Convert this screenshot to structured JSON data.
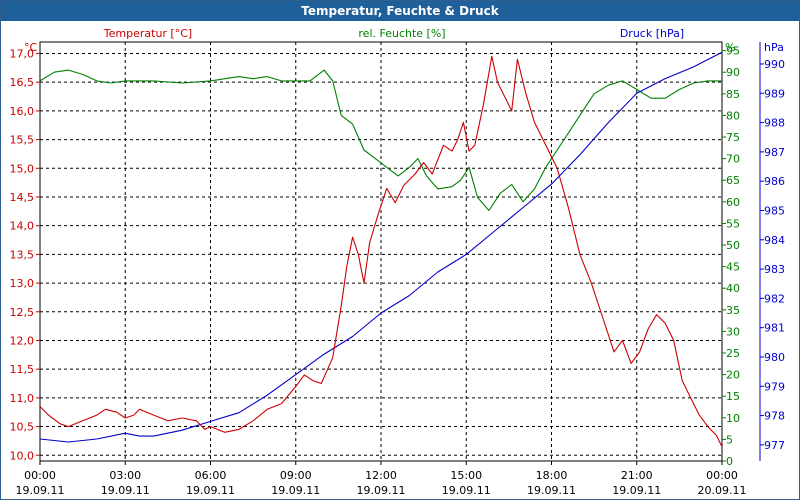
{
  "title": "Temperatur, Feuchte & Druck",
  "colors": {
    "temperature": "#cc0000",
    "humidity": "#008000",
    "pressure": "#0000cc",
    "grid": "#000000",
    "titlebar": "#1f5f9a"
  },
  "chart_data": {
    "type": "line",
    "title": "Temperatur, Feuchte & Druck",
    "x_ticks": [
      {
        "time": "00:00",
        "date": "19.09.11"
      },
      {
        "time": "03:00",
        "date": "19.09.11"
      },
      {
        "time": "06:00",
        "date": "19.09.11"
      },
      {
        "time": "09:00",
        "date": "19.09.11"
      },
      {
        "time": "12:00",
        "date": "19.09.11"
      },
      {
        "time": "15:00",
        "date": "19.09.11"
      },
      {
        "time": "18:00",
        "date": "19.09.11"
      },
      {
        "time": "21:00",
        "date": "19.09.11"
      },
      {
        "time": "00:00",
        "date": "20.09.11"
      }
    ],
    "x_range_hours": [
      0,
      24
    ],
    "axes": {
      "temperature": {
        "label": "Temperatur [°C]",
        "unit": "°C",
        "ylim": [
          9.9,
          17.2
        ],
        "ticks": [
          "10,0",
          "10,5",
          "11,0",
          "11,5",
          "12,0",
          "12,5",
          "13,0",
          "13,5",
          "14,0",
          "14,5",
          "15,0",
          "15,5",
          "16,0",
          "16,5",
          "17,0"
        ]
      },
      "humidity": {
        "label": "rel. Feuchte [%]",
        "unit": "%",
        "ylim": [
          0,
          97
        ],
        "ticks": [
          "0",
          "5",
          "10",
          "15",
          "20",
          "25",
          "30",
          "35",
          "40",
          "45",
          "50",
          "55",
          "60",
          "65",
          "70",
          "75",
          "80",
          "85",
          "90",
          "95"
        ]
      },
      "pressure": {
        "label": "Druck [hPa]",
        "unit": "hPa",
        "ylim": [
          976.45,
          990.75
        ],
        "ticks": [
          "977",
          "978",
          "979",
          "980",
          "981",
          "982",
          "983",
          "984",
          "985",
          "986",
          "987",
          "988",
          "989",
          "990"
        ]
      }
    },
    "series": [
      {
        "name": "Temperatur [°C]",
        "axis": "temperature",
        "points": [
          [
            0,
            10.85
          ],
          [
            0.3,
            10.7
          ],
          [
            0.7,
            10.55
          ],
          [
            1.0,
            10.5
          ],
          [
            1.5,
            10.6
          ],
          [
            2.0,
            10.7
          ],
          [
            2.3,
            10.8
          ],
          [
            2.7,
            10.75
          ],
          [
            3.0,
            10.65
          ],
          [
            3.3,
            10.7
          ],
          [
            3.5,
            10.8
          ],
          [
            4.0,
            10.7
          ],
          [
            4.5,
            10.6
          ],
          [
            5.0,
            10.65
          ],
          [
            5.5,
            10.6
          ],
          [
            5.8,
            10.45
          ],
          [
            6.0,
            10.5
          ],
          [
            6.5,
            10.4
          ],
          [
            7.0,
            10.45
          ],
          [
            7.5,
            10.6
          ],
          [
            8.0,
            10.8
          ],
          [
            8.5,
            10.9
          ],
          [
            9.0,
            11.2
          ],
          [
            9.3,
            11.4
          ],
          [
            9.6,
            11.3
          ],
          [
            9.9,
            11.25
          ],
          [
            10.3,
            11.7
          ],
          [
            10.6,
            12.6
          ],
          [
            10.8,
            13.3
          ],
          [
            11.0,
            13.8
          ],
          [
            11.2,
            13.5
          ],
          [
            11.4,
            13.0
          ],
          [
            11.6,
            13.7
          ],
          [
            11.9,
            14.2
          ],
          [
            12.2,
            14.65
          ],
          [
            12.5,
            14.4
          ],
          [
            12.8,
            14.7
          ],
          [
            13.2,
            14.9
          ],
          [
            13.5,
            15.1
          ],
          [
            13.8,
            14.9
          ],
          [
            14.2,
            15.4
          ],
          [
            14.5,
            15.3
          ],
          [
            14.7,
            15.5
          ],
          [
            14.9,
            15.8
          ],
          [
            15.1,
            15.3
          ],
          [
            15.3,
            15.4
          ],
          [
            15.6,
            16.1
          ],
          [
            15.9,
            16.95
          ],
          [
            16.1,
            16.5
          ],
          [
            16.4,
            16.2
          ],
          [
            16.6,
            16.0
          ],
          [
            16.8,
            16.9
          ],
          [
            17.1,
            16.3
          ],
          [
            17.4,
            15.8
          ],
          [
            17.8,
            15.4
          ],
          [
            18.2,
            15.0
          ],
          [
            18.6,
            14.3
          ],
          [
            19.0,
            13.5
          ],
          [
            19.4,
            13.0
          ],
          [
            19.8,
            12.4
          ],
          [
            20.2,
            11.8
          ],
          [
            20.5,
            12.0
          ],
          [
            20.8,
            11.6
          ],
          [
            21.1,
            11.8
          ],
          [
            21.4,
            12.2
          ],
          [
            21.7,
            12.45
          ],
          [
            22.0,
            12.3
          ],
          [
            22.3,
            12.0
          ],
          [
            22.6,
            11.3
          ],
          [
            22.9,
            11.0
          ],
          [
            23.2,
            10.7
          ],
          [
            23.5,
            10.5
          ],
          [
            23.8,
            10.35
          ],
          [
            24.0,
            10.15
          ]
        ]
      },
      {
        "name": "rel. Feuchte [%]",
        "axis": "humidity",
        "points": [
          [
            0,
            88
          ],
          [
            0.5,
            90
          ],
          [
            1.0,
            90.5
          ],
          [
            1.5,
            89.5
          ],
          [
            2.0,
            88
          ],
          [
            2.5,
            87.5
          ],
          [
            3.0,
            88
          ],
          [
            4.0,
            88
          ],
          [
            5.0,
            87.5
          ],
          [
            6.0,
            88
          ],
          [
            7.0,
            89
          ],
          [
            7.5,
            88.5
          ],
          [
            8.0,
            89
          ],
          [
            8.5,
            88
          ],
          [
            9.0,
            88
          ],
          [
            9.5,
            88
          ],
          [
            10.0,
            90.5
          ],
          [
            10.3,
            88
          ],
          [
            10.6,
            80
          ],
          [
            11.0,
            78
          ],
          [
            11.4,
            72
          ],
          [
            11.8,
            70
          ],
          [
            12.2,
            68
          ],
          [
            12.6,
            66
          ],
          [
            13.0,
            68
          ],
          [
            13.3,
            70
          ],
          [
            13.6,
            66
          ],
          [
            14.0,
            63
          ],
          [
            14.5,
            63.5
          ],
          [
            14.8,
            65
          ],
          [
            15.1,
            68
          ],
          [
            15.4,
            61
          ],
          [
            15.8,
            58
          ],
          [
            16.2,
            62
          ],
          [
            16.6,
            64
          ],
          [
            17.0,
            60
          ],
          [
            17.4,
            63
          ],
          [
            17.8,
            68
          ],
          [
            18.2,
            72
          ],
          [
            18.6,
            76
          ],
          [
            19.0,
            80
          ],
          [
            19.5,
            85
          ],
          [
            20.0,
            87
          ],
          [
            20.5,
            88
          ],
          [
            21.0,
            86
          ],
          [
            21.5,
            84
          ],
          [
            22.0,
            84
          ],
          [
            22.5,
            86
          ],
          [
            23.0,
            87.5
          ],
          [
            23.5,
            88
          ],
          [
            24.0,
            88
          ]
        ]
      },
      {
        "name": "Druck [hPa]",
        "axis": "pressure",
        "points": [
          [
            0,
            977.2
          ],
          [
            1.0,
            977.1
          ],
          [
            2.0,
            977.2
          ],
          [
            3.0,
            977.4
          ],
          [
            3.5,
            977.3
          ],
          [
            4.0,
            977.3
          ],
          [
            5.0,
            977.5
          ],
          [
            6.0,
            977.8
          ],
          [
            7.0,
            978.1
          ],
          [
            8.0,
            978.7
          ],
          [
            9.0,
            979.4
          ],
          [
            10.0,
            980.1
          ],
          [
            11.0,
            980.7
          ],
          [
            12.0,
            981.5
          ],
          [
            13.0,
            982.1
          ],
          [
            14.0,
            982.9
          ],
          [
            15.0,
            983.5
          ],
          [
            16.0,
            984.3
          ],
          [
            17.0,
            985.1
          ],
          [
            18.0,
            985.9
          ],
          [
            19.0,
            986.9
          ],
          [
            20.0,
            988.0
          ],
          [
            21.0,
            989.0
          ],
          [
            22.0,
            989.5
          ],
          [
            23.0,
            989.9
          ],
          [
            24.0,
            990.4
          ]
        ]
      }
    ]
  }
}
